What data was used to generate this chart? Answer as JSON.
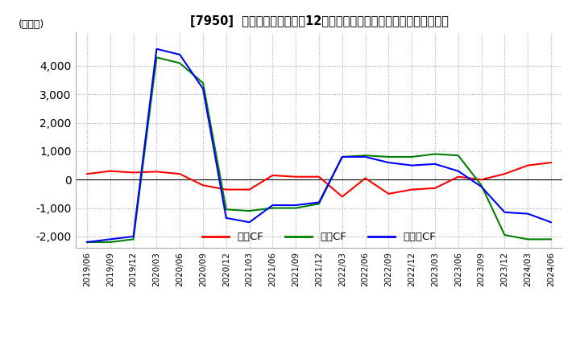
{
  "title": "[7950]  キャッシュフローの12か月移動合計の対前年同期増減額の推移",
  "ylabel": "(百万円)",
  "ylim": [
    -2400,
    5200
  ],
  "yticks": [
    -2000,
    -1000,
    0,
    1000,
    2000,
    3000,
    4000
  ],
  "legend_labels": [
    "営業CF",
    "投資CF",
    "フリーCF"
  ],
  "colors": [
    "#ff0000",
    "#008000",
    "#0000ff"
  ],
  "dates": [
    "2019/06",
    "2019/09",
    "2019/12",
    "2020/03",
    "2020/06",
    "2020/09",
    "2020/12",
    "2021/03",
    "2021/06",
    "2021/09",
    "2021/12",
    "2022/03",
    "2022/06",
    "2022/09",
    "2022/12",
    "2023/03",
    "2023/06",
    "2023/09",
    "2023/12",
    "2024/03",
    "2024/06"
  ],
  "operating_cf": [
    200,
    300,
    250,
    280,
    200,
    -200,
    -350,
    -350,
    150,
    100,
    100,
    -600,
    50,
    -500,
    -350,
    -300,
    100,
    0,
    200,
    500,
    600
  ],
  "investing_cf": [
    -2200,
    -2200,
    -2100,
    4300,
    4100,
    3400,
    -1050,
    -1100,
    -1000,
    -1000,
    -850,
    800,
    850,
    800,
    800,
    900,
    850,
    -200,
    -1950,
    -2100,
    -2100
  ],
  "free_cf": [
    -2200,
    -2100,
    -2000,
    4600,
    4400,
    3200,
    -1350,
    -1500,
    -900,
    -900,
    -800,
    800,
    800,
    600,
    500,
    550,
    300,
    -250,
    -1150,
    -1200,
    -1500
  ]
}
